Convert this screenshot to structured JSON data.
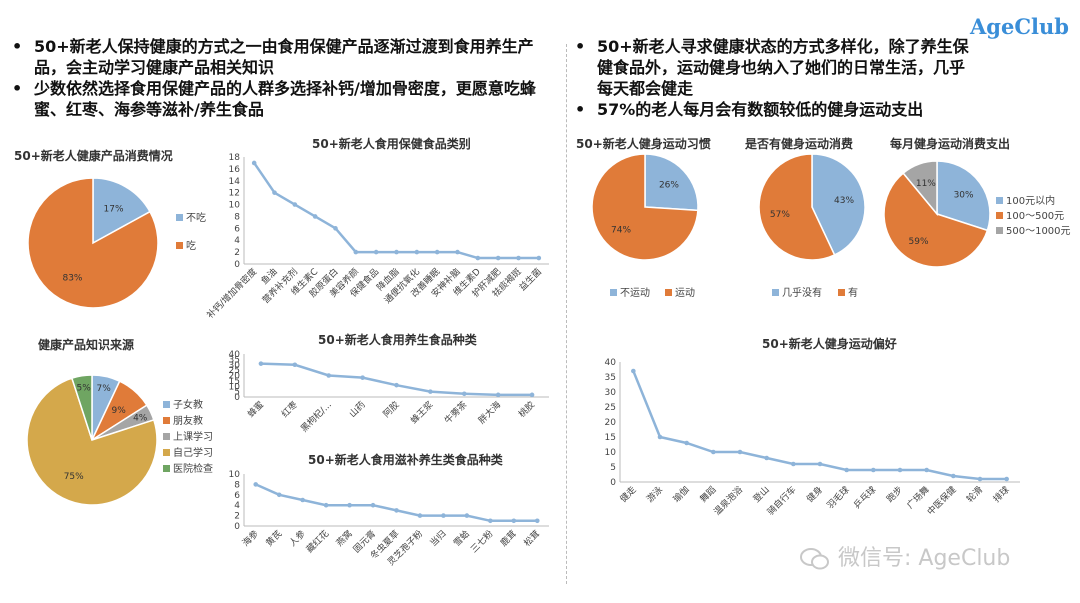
{
  "logo": "AgeClub",
  "watermark": "微信号: AgeClub",
  "bullets_left": [
    "50+新老人保持健康的方式之一由食用保健产品逐渐过渡到食用养生产品，会主动学习健康产品相关知识",
    "少数依然选择食用保健产品的人群多选择补钙/增加骨密度，更愿意吃蜂蜜、红枣、海参等滋补/养生食品"
  ],
  "bullets_right": [
    "50+新老人寻求健康状态的方式多样化，除了养生保健食品外，运动健身也纳入了她们的日常生活，几乎每天都会健走",
    "57%的老人每月会有数额较低的健身运动支出"
  ],
  "colors": {
    "blue": "#8eb4d9",
    "orange": "#e07b39",
    "gray": "#a5a5a5",
    "gold": "#d4a84b",
    "green": "#6fa562",
    "line": "#8eb4d9"
  },
  "chart_data": [
    {
      "type": "pie",
      "title": "50+新老人健康产品消费情况",
      "series": [
        {
          "values": [
            17,
            83
          ]
        }
      ],
      "categories": [
        "不吃",
        "吃"
      ],
      "labels": [
        "17%",
        "83%"
      ],
      "colors": [
        "blue",
        "orange"
      ],
      "legend": "right"
    },
    {
      "type": "pie",
      "title": "健康产品知识来源",
      "series": [
        {
          "values": [
            7,
            9,
            4,
            75,
            5
          ]
        }
      ],
      "categories": [
        "子女教",
        "朋友教",
        "上课学习",
        "自己学习",
        "医院检查"
      ],
      "labels": [
        "7%",
        "9%",
        "4%",
        "75%",
        "5%"
      ],
      "colors": [
        "blue",
        "orange",
        "gray",
        "gold",
        "green"
      ],
      "legend": "right"
    },
    {
      "type": "line",
      "title": "50+新老人食用保健食品类别",
      "categories": [
        "补钙/增加骨密度",
        "鱼油",
        "营养补充剂",
        "维生素C",
        "胶原蛋白",
        "美容养颜",
        "保健食品",
        "降血脂",
        "通便抗氧化",
        "改善睡眠",
        "安神补脑",
        "维生素D",
        "护肝减肥",
        "祛痰褐斑",
        "益生菌"
      ],
      "values": [
        17,
        12,
        10,
        8,
        6,
        2,
        2,
        2,
        2,
        2,
        2,
        1,
        1,
        1,
        1
      ],
      "ylim": [
        0,
        18
      ],
      "yticks": [
        0,
        2,
        4,
        6,
        8,
        10,
        12,
        14,
        16,
        18
      ]
    },
    {
      "type": "line",
      "title": "50+新老人食用养生食品种类",
      "categories": [
        "蜂蜜",
        "红枣",
        "黑枸杞/...",
        "山药",
        "阿胶",
        "蜂王浆",
        "牛蒡茶",
        "胖大海",
        "桃胶"
      ],
      "values": [
        31,
        30,
        20,
        18,
        11,
        5,
        3,
        2,
        2
      ],
      "ylim": [
        0,
        40
      ],
      "yticks": [
        0,
        5,
        10,
        15,
        20,
        25,
        30,
        35,
        40
      ]
    },
    {
      "type": "line",
      "title": "50+新老人食用滋补养生类食品种类",
      "categories": [
        "海参",
        "黄芪",
        "人参",
        "藏红花",
        "燕窝",
        "固元膏",
        "冬虫夏草",
        "灵芝孢子粉",
        "当归",
        "雪蛤",
        "三七粉",
        "鹿茸",
        "松茸"
      ],
      "values": [
        8,
        6,
        5,
        4,
        4,
        4,
        3,
        2,
        2,
        2,
        1,
        1,
        1
      ],
      "ylim": [
        0,
        10
      ],
      "yticks": [
        0,
        2,
        4,
        6,
        8,
        10
      ]
    },
    {
      "type": "pie",
      "title": "50+新老人健身运动习惯",
      "series": [
        {
          "values": [
            26,
            74
          ]
        }
      ],
      "categories": [
        "不运动",
        "运动"
      ],
      "labels": [
        "26%",
        "74%"
      ],
      "colors": [
        "blue",
        "orange"
      ],
      "legend": "bottom"
    },
    {
      "type": "pie",
      "title": "是否有健身运动消费",
      "series": [
        {
          "values": [
            43,
            57
          ]
        }
      ],
      "categories": [
        "几乎没有",
        "有"
      ],
      "labels": [
        "43%",
        "57%"
      ],
      "colors": [
        "blue",
        "orange"
      ],
      "legend": "bottom"
    },
    {
      "type": "pie",
      "title": "每月健身运动消费支出",
      "series": [
        {
          "values": [
            30,
            59,
            11
          ]
        }
      ],
      "categories": [
        "100元以内",
        "100～500元",
        "500～1000元"
      ],
      "labels": [
        "30%",
        "59%",
        "11%"
      ],
      "colors": [
        "blue",
        "orange",
        "gray"
      ],
      "legend": "right"
    },
    {
      "type": "line",
      "title": "50+新老人健身运动偏好",
      "categories": [
        "健走",
        "游泳",
        "瑜伽",
        "舞蹈",
        "温泉泡浴",
        "登山",
        "骑自行车",
        "健身",
        "羽毛球",
        "乒乓球",
        "跑步",
        "广场舞",
        "中医保健",
        "轮滑",
        "排球"
      ],
      "values": [
        37,
        15,
        13,
        10,
        10,
        8,
        6,
        6,
        4,
        4,
        4,
        4,
        2,
        1,
        1
      ],
      "ylim": [
        0,
        40
      ],
      "yticks": [
        0,
        5,
        10,
        15,
        20,
        25,
        30,
        35,
        40
      ]
    }
  ]
}
